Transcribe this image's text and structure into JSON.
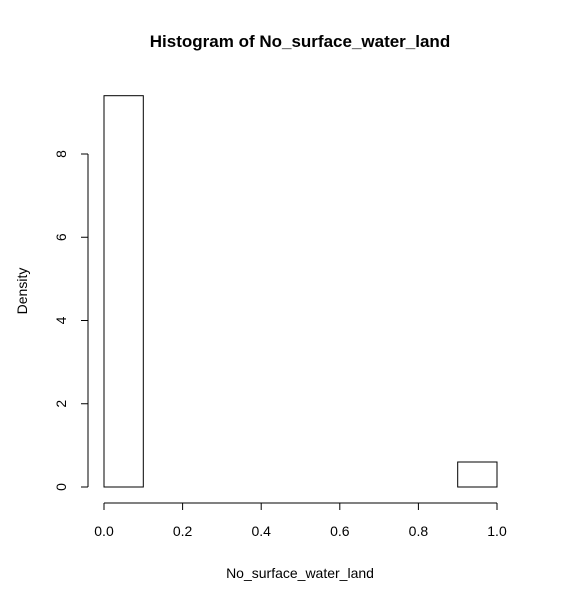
{
  "chart_data": {
    "type": "bar",
    "title": "Histogram of No_surface_water_land",
    "xlabel": "No_surface_water_land",
    "ylabel": "Density",
    "xlim": [
      0,
      1
    ],
    "ylim": [
      0,
      9.4
    ],
    "grid": false,
    "bins": [
      {
        "x0": 0.0,
        "x1": 0.1,
        "density": 9.4
      },
      {
        "x0": 0.1,
        "x1": 0.2,
        "density": 0.0
      },
      {
        "x0": 0.2,
        "x1": 0.3,
        "density": 0.0
      },
      {
        "x0": 0.3,
        "x1": 0.4,
        "density": 0.0
      },
      {
        "x0": 0.4,
        "x1": 0.5,
        "density": 0.0
      },
      {
        "x0": 0.5,
        "x1": 0.6,
        "density": 0.0
      },
      {
        "x0": 0.6,
        "x1": 0.7,
        "density": 0.0
      },
      {
        "x0": 0.7,
        "x1": 0.8,
        "density": 0.0
      },
      {
        "x0": 0.8,
        "x1": 0.9,
        "density": 0.0
      },
      {
        "x0": 0.9,
        "x1": 1.0,
        "density": 0.6
      }
    ],
    "x_ticks": [
      {
        "value": 0.0,
        "label": "0.0"
      },
      {
        "value": 0.2,
        "label": "0.2"
      },
      {
        "value": 0.4,
        "label": "0.4"
      },
      {
        "value": 0.6,
        "label": "0.6"
      },
      {
        "value": 0.8,
        "label": "0.8"
      },
      {
        "value": 1.0,
        "label": "1.0"
      }
    ],
    "y_ticks": [
      {
        "value": 0,
        "label": "0"
      },
      {
        "value": 2,
        "label": "2"
      },
      {
        "value": 4,
        "label": "4"
      },
      {
        "value": 6,
        "label": "6"
      },
      {
        "value": 8,
        "label": "8"
      }
    ]
  }
}
